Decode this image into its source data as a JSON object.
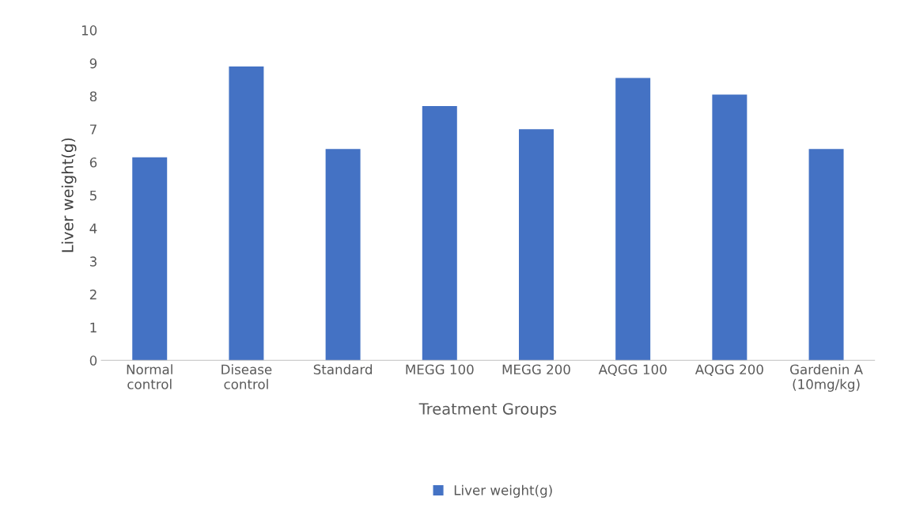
{
  "chart_data": {
    "type": "bar",
    "xlabel": "Treatment Groups",
    "ylabel": "Liver weight(g)",
    "categories": [
      "Normal\ncontrol",
      "Disease\ncontrol",
      "Standard",
      "MEGG 100",
      "MEGG 200",
      "AQGG 100",
      "AQGG 200",
      "Gardenin A\n(10mg/kg)"
    ],
    "series": [
      {
        "name": "Liver weight(g)",
        "color": "#4472c4",
        "values": [
          6.15,
          8.9,
          6.4,
          7.7,
          7.0,
          8.55,
          8.05,
          6.4
        ]
      }
    ],
    "ylim": [
      0,
      10
    ],
    "yticks": [
      0,
      1,
      2,
      3,
      4,
      5,
      6,
      7,
      8,
      9,
      10
    ],
    "grid": false,
    "legend": "bottom"
  }
}
